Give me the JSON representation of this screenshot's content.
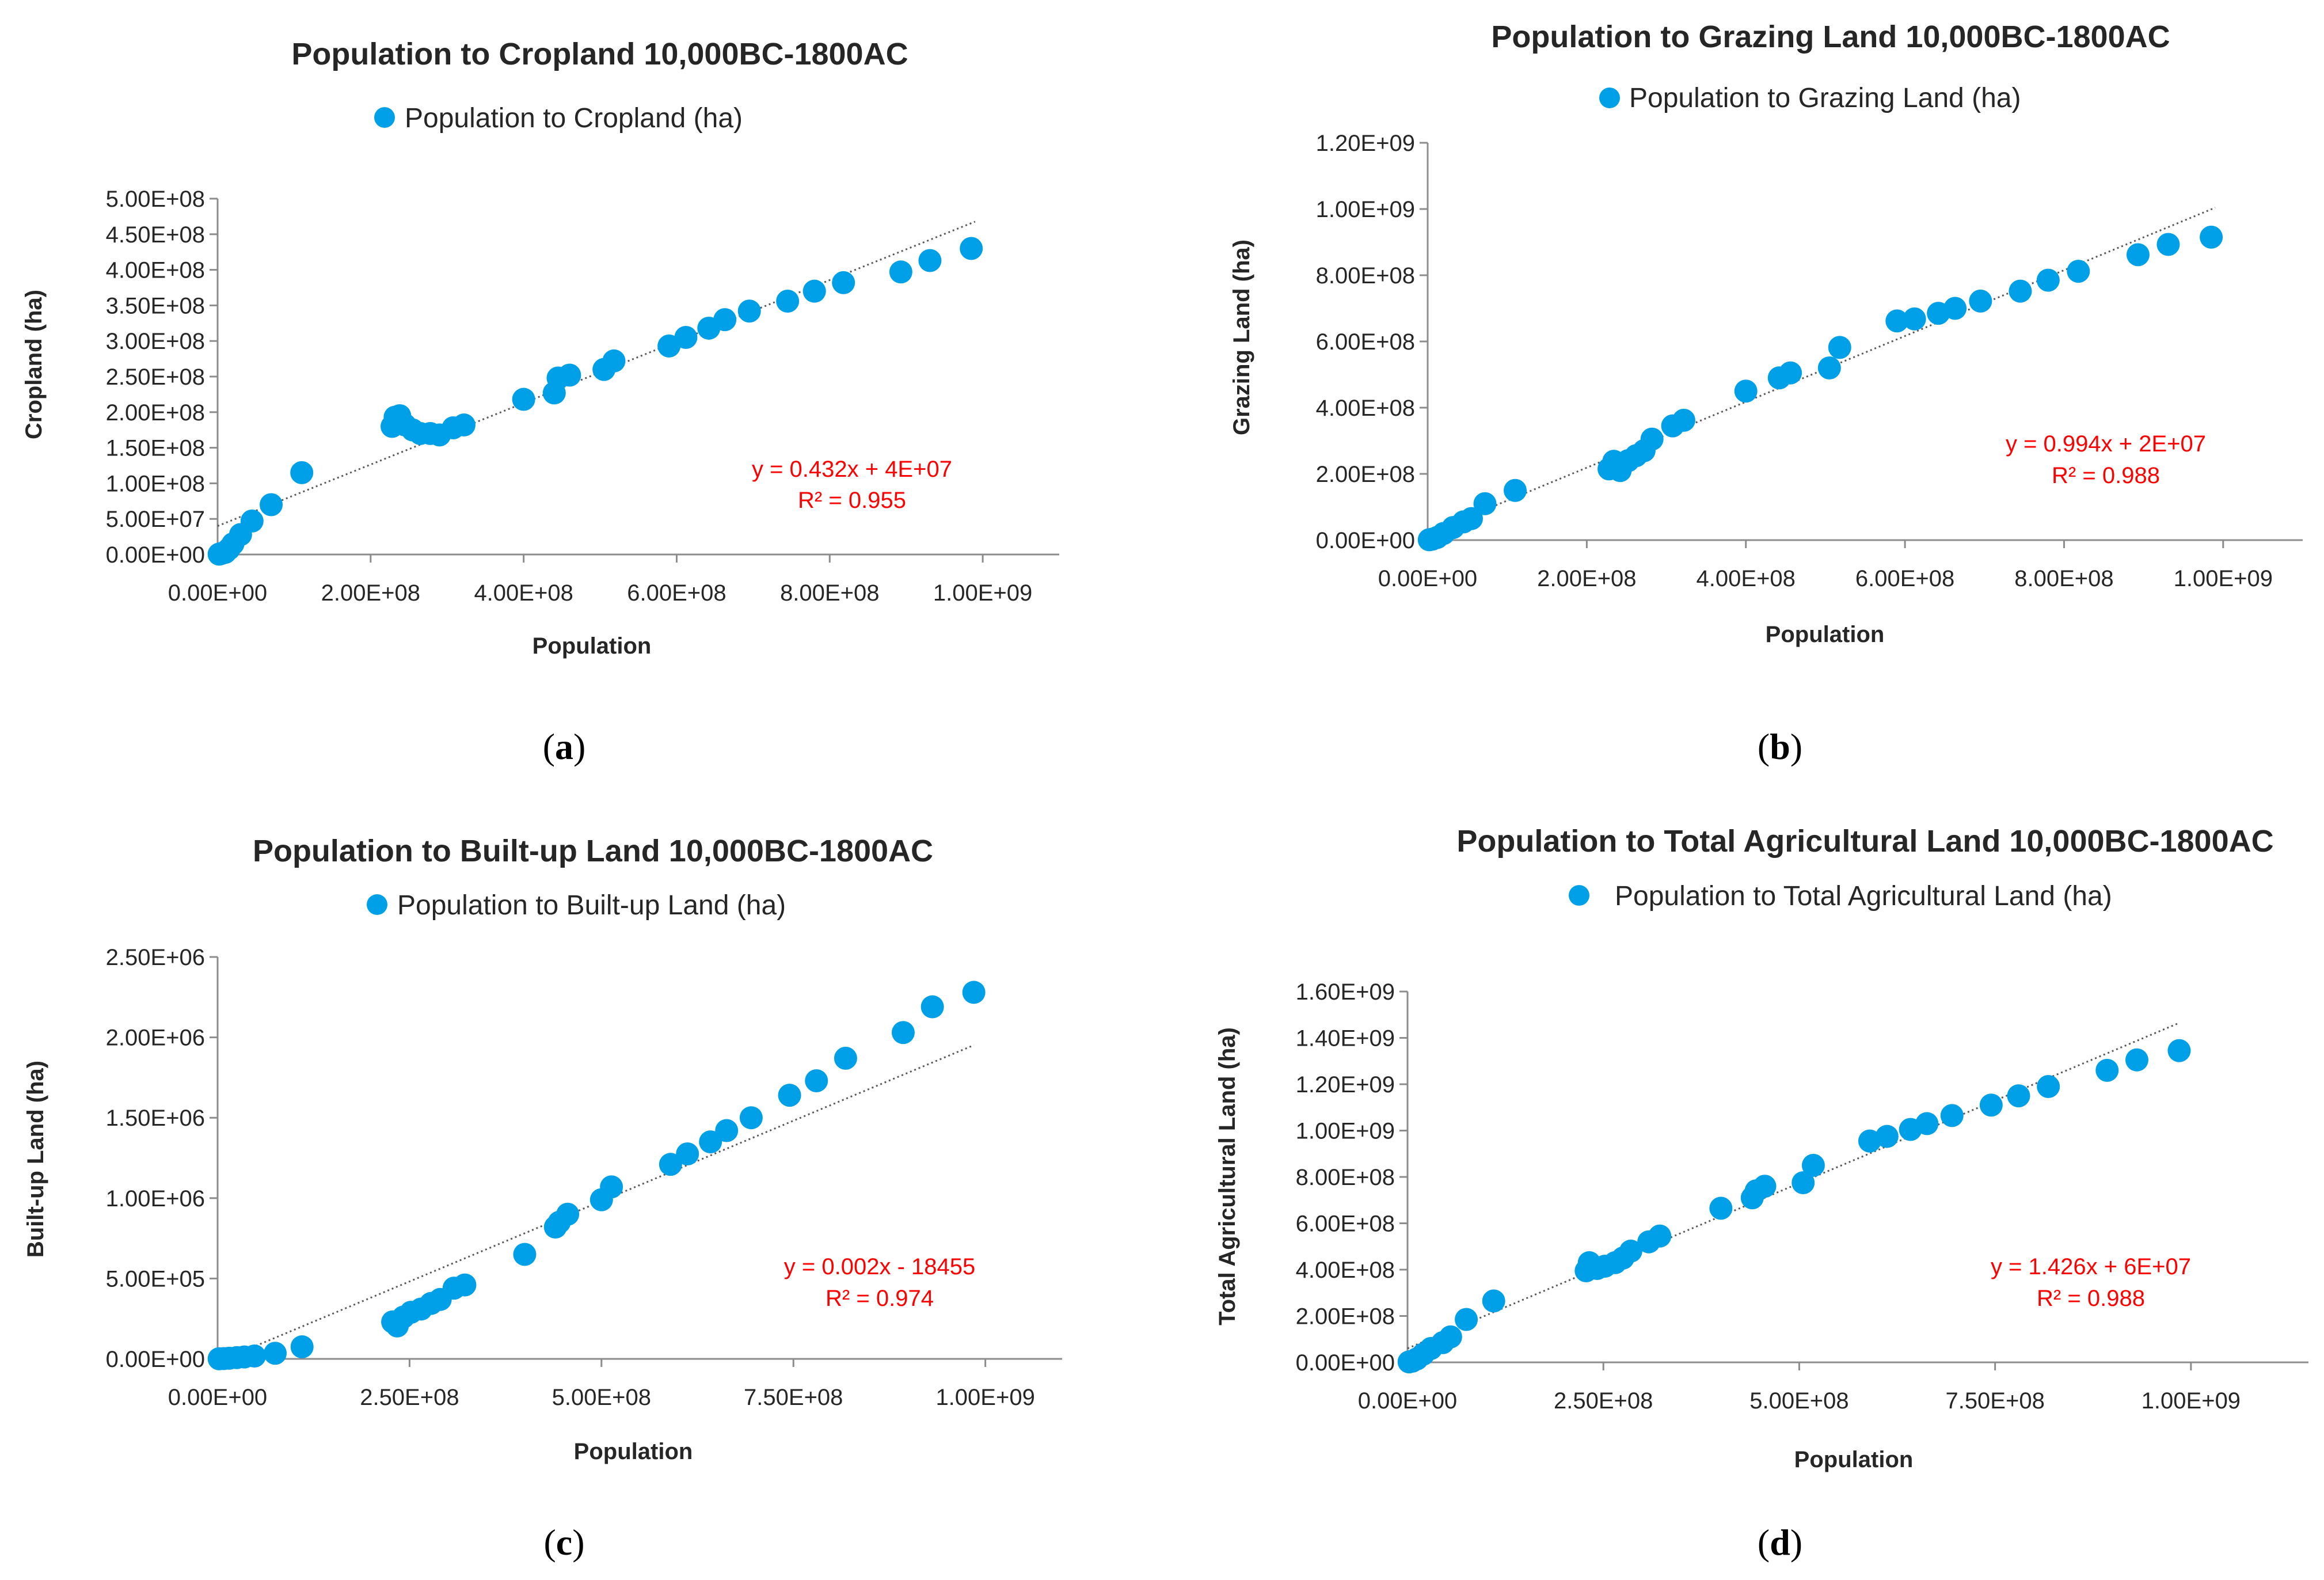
{
  "colors": {
    "marker": "#00a0e9",
    "trend": "#595959",
    "equation": "#ff0000",
    "axis": "#8c8c8c",
    "text": "#262626"
  },
  "chart_data": [
    {
      "panel": "(a)",
      "panel_letter": "a",
      "type": "scatter",
      "title": "Population to Cropland 10,000BC-1800AC",
      "legend": "Population to Cropland (ha)",
      "xlabel": "Population",
      "ylabel": "Cropland (ha)",
      "xlim": [
        0,
        1100000000
      ],
      "ylim": [
        0,
        500000000
      ],
      "xticks": [
        0,
        200000000,
        400000000,
        600000000,
        800000000,
        1000000000
      ],
      "xtick_labels": [
        "0.00E+00",
        "2.00E+08",
        "4.00E+08",
        "6.00E+08",
        "8.00E+08",
        "1.00E+09"
      ],
      "yticks": [
        0,
        50000000,
        100000000,
        150000000,
        200000000,
        250000000,
        300000000,
        350000000,
        400000000,
        450000000,
        500000000
      ],
      "ytick_labels": [
        "0.00E+00",
        "5.00E+07",
        "1.00E+08",
        "1.50E+08",
        "2.00E+08",
        "2.50E+08",
        "3.00E+08",
        "3.50E+08",
        "4.00E+08",
        "4.50E+08",
        "5.00E+08"
      ],
      "trendline": {
        "slope": 0.432,
        "intercept": 40000000,
        "x_range": [
          0,
          990000000
        ]
      },
      "equation": "y = 0.432x + 4E+07",
      "r2": "R² = 0.955",
      "points": [
        [
          2000000,
          500000
        ],
        [
          5000000,
          1500000
        ],
        [
          10000000,
          3000000
        ],
        [
          15000000,
          8000000
        ],
        [
          20000000,
          15000000
        ],
        [
          30000000,
          28000000
        ],
        [
          45000000,
          47000000
        ],
        [
          70000000,
          70000000
        ],
        [
          110000000,
          115000000
        ],
        [
          228000000,
          180000000
        ],
        [
          232000000,
          193000000
        ],
        [
          238000000,
          195000000
        ],
        [
          245000000,
          182000000
        ],
        [
          255000000,
          175000000
        ],
        [
          265000000,
          170000000
        ],
        [
          278000000,
          170000000
        ],
        [
          290000000,
          168000000
        ],
        [
          308000000,
          178000000
        ],
        [
          322000000,
          182000000
        ],
        [
          400000000,
          218000000
        ],
        [
          440000000,
          227000000
        ],
        [
          445000000,
          248000000
        ],
        [
          460000000,
          252000000
        ],
        [
          505000000,
          260000000
        ],
        [
          518000000,
          272000000
        ],
        [
          590000000,
          293000000
        ],
        [
          612000000,
          305000000
        ],
        [
          642000000,
          318000000
        ],
        [
          663000000,
          330000000
        ],
        [
          695000000,
          342000000
        ],
        [
          745000000,
          356000000
        ],
        [
          780000000,
          370000000
        ],
        [
          818000000,
          382000000
        ],
        [
          893000000,
          397000000
        ],
        [
          931000000,
          413000000
        ],
        [
          985000000,
          430000000
        ]
      ]
    },
    {
      "panel": "(b)",
      "panel_letter": "b",
      "type": "scatter",
      "title": "Population to Grazing Land 10,000BC-1800AC",
      "legend": "Population to Grazing Land (ha)",
      "xlabel": "Population",
      "ylabel": "Grazing Land (ha)",
      "xlim": [
        0,
        1100000000
      ],
      "ylim": [
        0,
        1200000000
      ],
      "xticks": [
        0,
        200000000,
        400000000,
        600000000,
        800000000,
        1000000000
      ],
      "xtick_labels": [
        "0.00E+00",
        "2.00E+08",
        "4.00E+08",
        "6.00E+08",
        "8.00E+08",
        "1.00E+09"
      ],
      "yticks": [
        0,
        200000000,
        400000000,
        600000000,
        800000000,
        1000000000,
        1200000000
      ],
      "ytick_labels": [
        "0.00E+00",
        "2.00E+08",
        "4.00E+08",
        "6.00E+08",
        "8.00E+08",
        "1.00E+09",
        "1.20E+09"
      ],
      "trendline": {
        "slope": 0.994,
        "intercept": 20000000,
        "x_range": [
          0,
          990000000
        ]
      },
      "equation": "y = 0.994x + 2E+07",
      "r2": "R² = 0.988",
      "points": [
        [
          2000000,
          1000000
        ],
        [
          6000000,
          3000000
        ],
        [
          12000000,
          8000000
        ],
        [
          20000000,
          20000000
        ],
        [
          32000000,
          38000000
        ],
        [
          45000000,
          55000000
        ],
        [
          55000000,
          65000000
        ],
        [
          72000000,
          110000000
        ],
        [
          110000000,
          150000000
        ],
        [
          228000000,
          215000000
        ],
        [
          234000000,
          238000000
        ],
        [
          242000000,
          210000000
        ],
        [
          252000000,
          240000000
        ],
        [
          262000000,
          255000000
        ],
        [
          272000000,
          270000000
        ],
        [
          282000000,
          305000000
        ],
        [
          308000000,
          345000000
        ],
        [
          322000000,
          362000000
        ],
        [
          400000000,
          450000000
        ],
        [
          442000000,
          490000000
        ],
        [
          456000000,
          505000000
        ],
        [
          505000000,
          520000000
        ],
        [
          518000000,
          582000000
        ],
        [
          590000000,
          662000000
        ],
        [
          612000000,
          668000000
        ],
        [
          642000000,
          685000000
        ],
        [
          663000000,
          700000000
        ],
        [
          695000000,
          722000000
        ],
        [
          745000000,
          752000000
        ],
        [
          780000000,
          785000000
        ],
        [
          818000000,
          812000000
        ],
        [
          893000000,
          862000000
        ],
        [
          931000000,
          893000000
        ],
        [
          985000000,
          915000000
        ]
      ]
    },
    {
      "panel": "(c)",
      "panel_letter": "c",
      "type": "scatter",
      "title": "Population to Built-up Land 10,000BC-1800AC",
      "legend": "Population to Built-up Land (ha)",
      "xlabel": "Population",
      "ylabel": "Built-up Land (ha)",
      "xlim": [
        0,
        1100000000
      ],
      "ylim": [
        0,
        2500000
      ],
      "xticks": [
        0,
        250000000,
        500000000,
        750000000,
        1000000000
      ],
      "xtick_labels": [
        "0.00E+00",
        "2.50E+08",
        "5.00E+08",
        "7.50E+08",
        "1.00E+09"
      ],
      "yticks": [
        0,
        500000,
        1000000,
        1500000,
        2000000,
        2500000
      ],
      "ytick_labels": [
        "0.00E+00",
        "5.00E+05",
        "1.00E+06",
        "1.50E+06",
        "2.00E+06",
        "2.50E+06"
      ],
      "trendline": {
        "slope": 0.002,
        "intercept": -18455,
        "x_range": [
          0,
          985000000
        ]
      },
      "equation": "y = 0.002x - 18455",
      "r2": "R² = 0.974",
      "points": [
        [
          2000000,
          1000
        ],
        [
          8000000,
          2000
        ],
        [
          15000000,
          4000
        ],
        [
          25000000,
          8000
        ],
        [
          35000000,
          12000
        ],
        [
          48000000,
          18000
        ],
        [
          75000000,
          35000
        ],
        [
          110000000,
          75000
        ],
        [
          228000000,
          230000
        ],
        [
          234000000,
          205000
        ],
        [
          242000000,
          260000
        ],
        [
          252000000,
          290000
        ],
        [
          265000000,
          310000
        ],
        [
          278000000,
          345000
        ],
        [
          290000000,
          370000
        ],
        [
          308000000,
          440000
        ],
        [
          322000000,
          460000
        ],
        [
          400000000,
          650000
        ],
        [
          440000000,
          820000
        ],
        [
          445000000,
          850000
        ],
        [
          456000000,
          900000
        ],
        [
          500000000,
          990000
        ],
        [
          513000000,
          1070000
        ],
        [
          590000000,
          1210000
        ],
        [
          612000000,
          1275000
        ],
        [
          642000000,
          1350000
        ],
        [
          663000000,
          1420000
        ],
        [
          695000000,
          1500000
        ],
        [
          745000000,
          1640000
        ],
        [
          780000000,
          1730000
        ],
        [
          818000000,
          1870000
        ],
        [
          893000000,
          2030000
        ],
        [
          931000000,
          2190000
        ],
        [
          985000000,
          2280000
        ]
      ]
    },
    {
      "panel": "(d)",
      "panel_letter": "d",
      "type": "scatter",
      "title": "Population to Total Agricultural Land 10,000BC-1800AC",
      "legend": "Population to Total Agricultural Land (ha)",
      "xlabel": "Population",
      "ylabel": "Total Agricultural Land (ha)",
      "xlim": [
        0,
        1150000000
      ],
      "ylim": [
        0,
        1600000000
      ],
      "xticks": [
        0,
        250000000,
        500000000,
        750000000,
        1000000000
      ],
      "xtick_labels": [
        "0.00E+00",
        "2.50E+08",
        "5.00E+08",
        "7.50E+08",
        "1.00E+09"
      ],
      "yticks": [
        0,
        200000000,
        400000000,
        600000000,
        800000000,
        1000000000,
        1200000000,
        1400000000,
        1600000000
      ],
      "ytick_labels": [
        "0.00E+00",
        "2.00E+08",
        "4.00E+08",
        "6.00E+08",
        "8.00E+08",
        "1.00E+09",
        "1.20E+09",
        "1.40E+09",
        "1.60E+09"
      ],
      "trendline": {
        "slope": 1.426,
        "intercept": 60000000,
        "x_range": [
          0,
          985000000
        ]
      },
      "equation": "y = 1.426x + 6E+07",
      "r2": "R² = 0.988",
      "points": [
        [
          2000000,
          2000000
        ],
        [
          6000000,
          5000000
        ],
        [
          12000000,
          15000000
        ],
        [
          20000000,
          35000000
        ],
        [
          30000000,
          60000000
        ],
        [
          45000000,
          85000000
        ],
        [
          55000000,
          110000000
        ],
        [
          75000000,
          185000000
        ],
        [
          110000000,
          265000000
        ],
        [
          228000000,
          395000000
        ],
        [
          232000000,
          430000000
        ],
        [
          242000000,
          405000000
        ],
        [
          252000000,
          415000000
        ],
        [
          265000000,
          430000000
        ],
        [
          275000000,
          450000000
        ],
        [
          285000000,
          480000000
        ],
        [
          308000000,
          520000000
        ],
        [
          322000000,
          545000000
        ],
        [
          400000000,
          665000000
        ],
        [
          440000000,
          710000000
        ],
        [
          445000000,
          740000000
        ],
        [
          456000000,
          760000000
        ],
        [
          505000000,
          775000000
        ],
        [
          518000000,
          850000000
        ],
        [
          590000000,
          955000000
        ],
        [
          612000000,
          975000000
        ],
        [
          642000000,
          1005000000
        ],
        [
          663000000,
          1030000000
        ],
        [
          695000000,
          1065000000
        ],
        [
          745000000,
          1110000000
        ],
        [
          780000000,
          1150000000
        ],
        [
          818000000,
          1190000000
        ],
        [
          893000000,
          1260000000
        ],
        [
          931000000,
          1305000000
        ],
        [
          985000000,
          1345000000
        ]
      ]
    }
  ]
}
